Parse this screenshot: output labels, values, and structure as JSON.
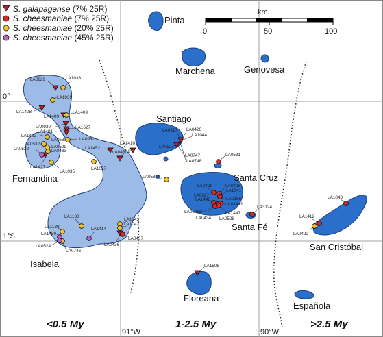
{
  "legend": [
    {
      "species": "S. galapagense",
      "note": "(7% 25R)",
      "symbol": "triangle",
      "color": "#b22128"
    },
    {
      "species": "S. cheesmaniae",
      "note": "(7% 25R)",
      "symbol": "circle",
      "color": "#d62a26"
    },
    {
      "species": "S. cheesmaniae",
      "note": "(20% 25R)",
      "symbol": "circle",
      "color": "#f2c230"
    },
    {
      "species": "S. cheesmaniae",
      "note": "(45% 25R)",
      "symbol": "circle",
      "color": "#c060c8"
    }
  ],
  "scale": {
    "unit": "km",
    "ticks": [
      "0",
      "50",
      "100"
    ]
  },
  "latitude_labels": [
    "0°",
    "1°S"
  ],
  "longitude_labels": [
    "91°W",
    "90°W"
  ],
  "age_zones": [
    "<0.5 My",
    "1-2.5 My",
    ">2.5 My"
  ],
  "islands": {
    "pinta": "Pinta",
    "marchena": "Marchena",
    "genovesa": "Genovesa",
    "santiago": "Santiago",
    "fernandina": "Fernandina",
    "isabela": "Isabela",
    "santa_cruz": "Santa Cruz",
    "santa_fe": "Santa Fé",
    "san_cristobal": "San Cristóbal",
    "floreana": "Floreana",
    "espanola": "Española"
  },
  "accessions": {
    "la0929": "LA0929",
    "la1036": "LA1036",
    "la1039": "LA1039",
    "la1408": "LA1408",
    "la1400": "LA1400",
    "la1409": "LA1409",
    "la0930": "LA0930",
    "la1401": "LA1401",
    "la1627": "LA1627",
    "la1402": "LA1402",
    "la0530": "LA0530",
    "la0932": "LA0932",
    "la0532a": "LA0532",
    "la0529": "LA0529",
    "la0522": "LA0522",
    "la0483": "LA0483",
    "la1427": "LA1427",
    "la1035": "LA1035",
    "la1452": "LA1452",
    "la1037": "LA1037",
    "la1410": "LA1410",
    "la0480a": "LA0480A",
    "la0317": "LA0317",
    "la0426": "LA0426",
    "la1044": "LA1044",
    "la0527": "LA0527",
    "la0747": "LA0747",
    "la0748": "LA0748",
    "la0531": "LA0531",
    "la0532b": "LA0532",
    "la0429": "LA0429",
    "la0428": "LA0428",
    "la1041": "LA1041",
    "la0927": "LA0927",
    "la0166": "LA0166",
    "la1448": "LA1448",
    "la1449": "LA1449",
    "la1447": "LA1447",
    "la0528b": "LA0528B",
    "la0434": "LA0434",
    "la0528": "LA0528",
    "la3124": "LA3124",
    "la1040": "LA1040",
    "la1412": "LA1412",
    "la0422": "LA0422",
    "la1138": "LA1138",
    "la1043": "LA1043",
    "la1042": "LA1042",
    "la1414": "LA1414",
    "la0437": "LA0437",
    "la0436": "LA0436",
    "la1139": "LA1139",
    "la1450": "LA1450",
    "la0524": "LA0524",
    "la0746": "LA0746",
    "la1508": "LA1508"
  },
  "colors": {
    "young_island": "#9dbbe7",
    "old_island": "#2a6fc9",
    "island_stroke": "#1d3f7a",
    "triangle": "#b22128",
    "red_circle": "#d62a26",
    "yellow_circle": "#f2c230",
    "purple_circle": "#c060c8"
  }
}
